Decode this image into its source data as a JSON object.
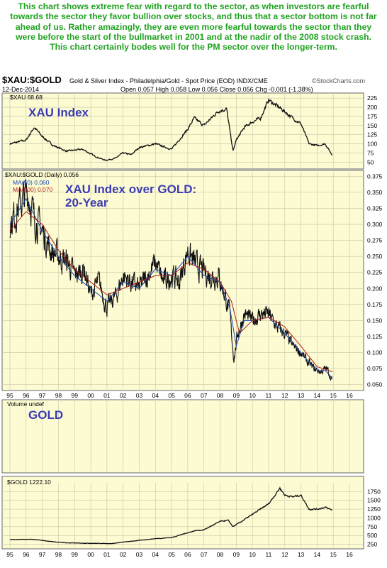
{
  "caption": "This chart shows extreme fear with regard to the sector, as when investors are fearful towards the sector they favor bullion over stocks, and thus that a sector bottom is not far ahead of us. Rather amazingly, they are even more fearful towards the sector than they were before the start of the bullmarket in 2001 and at the nadir of the 2008 stock crash. This chart certainly bodes well for the PM sector over the longer-term.",
  "header": {
    "symbol": "$XAU:$GOLD",
    "description": "Gold & Silver Index - Philadelphia/Gold - Spot Price (EOD) INDX/CME",
    "date": "12-Dec-2014",
    "ohlc": "Open 0.057  High 0.058  Low 0.056  Close 0.056  Chg -0.001 (-1.38%)",
    "source": "©StockCharts.com"
  },
  "chart_data": [
    {
      "type": "line",
      "panel_label": "XAU Index",
      "legend": [
        "$XAU 68.68"
      ],
      "x": [
        1995.0,
        1996.0,
        1996.5,
        1997.0,
        1997.7,
        1998.5,
        1999.5,
        2000.3,
        2000.9,
        2001.5,
        2002.0,
        2002.5,
        2003.0,
        2004.0,
        2005.0,
        2006.0,
        2006.4,
        2007.0,
        2007.9,
        2008.4,
        2008.8,
        2009.0,
        2009.5,
        2010.0,
        2010.5,
        2011.0,
        2011.3,
        2011.8,
        2012.5,
        2013.0,
        2013.5,
        2014.0,
        2014.5,
        2014.95
      ],
      "y": [
        100,
        110,
        145,
        120,
        95,
        80,
        85,
        65,
        55,
        60,
        75,
        70,
        90,
        100,
        85,
        140,
        170,
        150,
        190,
        195,
        80,
        110,
        145,
        160,
        170,
        220,
        210,
        195,
        170,
        155,
        100,
        95,
        100,
        68
      ],
      "yticks": [
        50,
        75,
        100,
        125,
        150,
        175,
        200,
        225
      ],
      "ylim": [
        35,
        235
      ]
    },
    {
      "type": "line",
      "panel_label": "XAU Index over GOLD:\n20-Year",
      "legend": [
        "$XAU:$GOLD (Daily) 0.056",
        "MA(50) 0.060",
        "MA(200) 0.070"
      ],
      "series": [
        {
          "name": "$XAU:$GOLD (Daily)",
          "x": [
            1995.0,
            1995.6,
            1996.1,
            1996.5,
            1997.0,
            1997.5,
            1998.0,
            1998.6,
            1999.0,
            1999.6,
            2000.0,
            2000.5,
            2001.0,
            2001.6,
            2002.0,
            2002.5,
            2003.0,
            2003.5,
            2004.0,
            2004.5,
            2005.0,
            2005.5,
            2006.0,
            2006.4,
            2006.8,
            2007.3,
            2007.9,
            2008.3,
            2008.6,
            2008.85,
            2009.1,
            2009.5,
            2010.0,
            2010.5,
            2011.0,
            2011.5,
            2012.0,
            2012.5,
            2013.0,
            2013.4,
            2013.8,
            2014.2,
            2014.6,
            2014.95
          ],
          "y": [
            0.3,
            0.33,
            0.35,
            0.31,
            0.29,
            0.26,
            0.25,
            0.24,
            0.22,
            0.23,
            0.19,
            0.21,
            0.17,
            0.19,
            0.22,
            0.21,
            0.2,
            0.22,
            0.24,
            0.21,
            0.22,
            0.21,
            0.26,
            0.24,
            0.23,
            0.22,
            0.22,
            0.19,
            0.16,
            0.09,
            0.13,
            0.16,
            0.15,
            0.16,
            0.16,
            0.14,
            0.13,
            0.11,
            0.1,
            0.085,
            0.075,
            0.07,
            0.075,
            0.056
          ]
        },
        {
          "name": "MA(50)",
          "x": [
            1995.0,
            1996.0,
            1997.0,
            1998.0,
            1999.0,
            2000.0,
            2001.0,
            2002.0,
            2003.0,
            2004.0,
            2005.0,
            2006.0,
            2007.0,
            2008.0,
            2008.6,
            2009.0,
            2009.5,
            2010.0,
            2011.0,
            2012.0,
            2013.0,
            2013.5,
            2014.0,
            2014.5,
            2014.95
          ],
          "y": [
            0.3,
            0.34,
            0.29,
            0.25,
            0.22,
            0.2,
            0.18,
            0.21,
            0.2,
            0.23,
            0.22,
            0.25,
            0.22,
            0.21,
            0.17,
            0.11,
            0.15,
            0.15,
            0.155,
            0.13,
            0.1,
            0.085,
            0.072,
            0.072,
            0.06
          ]
        },
        {
          "name": "MA(200)",
          "x": [
            1995.0,
            1996.0,
            1997.0,
            1998.0,
            1999.0,
            2000.0,
            2001.0,
            2002.0,
            2003.0,
            2004.0,
            2005.0,
            2006.0,
            2007.0,
            2008.0,
            2008.7,
            2009.2,
            2010.0,
            2011.0,
            2012.0,
            2013.0,
            2014.0,
            2014.95
          ],
          "y": [
            0.29,
            0.32,
            0.3,
            0.26,
            0.23,
            0.21,
            0.19,
            0.2,
            0.21,
            0.22,
            0.22,
            0.24,
            0.23,
            0.21,
            0.18,
            0.13,
            0.15,
            0.155,
            0.14,
            0.11,
            0.078,
            0.07
          ]
        }
      ],
      "yticks": [
        0.05,
        0.075,
        0.1,
        0.125,
        0.15,
        0.175,
        0.2,
        0.225,
        0.25,
        0.275,
        0.3,
        0.325,
        0.35,
        0.375
      ],
      "ylim": [
        0.043,
        0.382
      ]
    },
    {
      "type": "line",
      "panel_label": "GOLD",
      "legend": [
        "Volume undef",
        "$GOLD 1222.10"
      ],
      "x": [
        1995.0,
        1996.0,
        1996.5,
        1997.5,
        1998.5,
        1999.6,
        2000.5,
        2001.3,
        2002.0,
        2003.0,
        2004.0,
        2005.0,
        2006.0,
        2006.5,
        2007.0,
        2008.0,
        2008.5,
        2008.8,
        2009.5,
        2010.0,
        2010.5,
        2011.0,
        2011.7,
        2012.0,
        2012.5,
        2013.0,
        2013.5,
        2014.0,
        2014.5,
        2014.95
      ],
      "y": [
        385,
        390,
        385,
        330,
        290,
        280,
        275,
        270,
        310,
        360,
        410,
        440,
        580,
        640,
        660,
        900,
        930,
        750,
        950,
        1100,
        1250,
        1400,
        1850,
        1650,
        1600,
        1650,
        1250,
        1250,
        1300,
        1222
      ],
      "yticks": [
        250,
        500,
        750,
        1000,
        1250,
        1500,
        1750
      ],
      "ylim": [
        160,
        2000
      ]
    }
  ],
  "xticks": [
    "95",
    "96",
    "97",
    "98",
    "99",
    "00",
    "01",
    "02",
    "03",
    "04",
    "05",
    "06",
    "07",
    "08",
    "09",
    "10",
    "11",
    "12",
    "13",
    "14",
    "15",
    "16"
  ]
}
